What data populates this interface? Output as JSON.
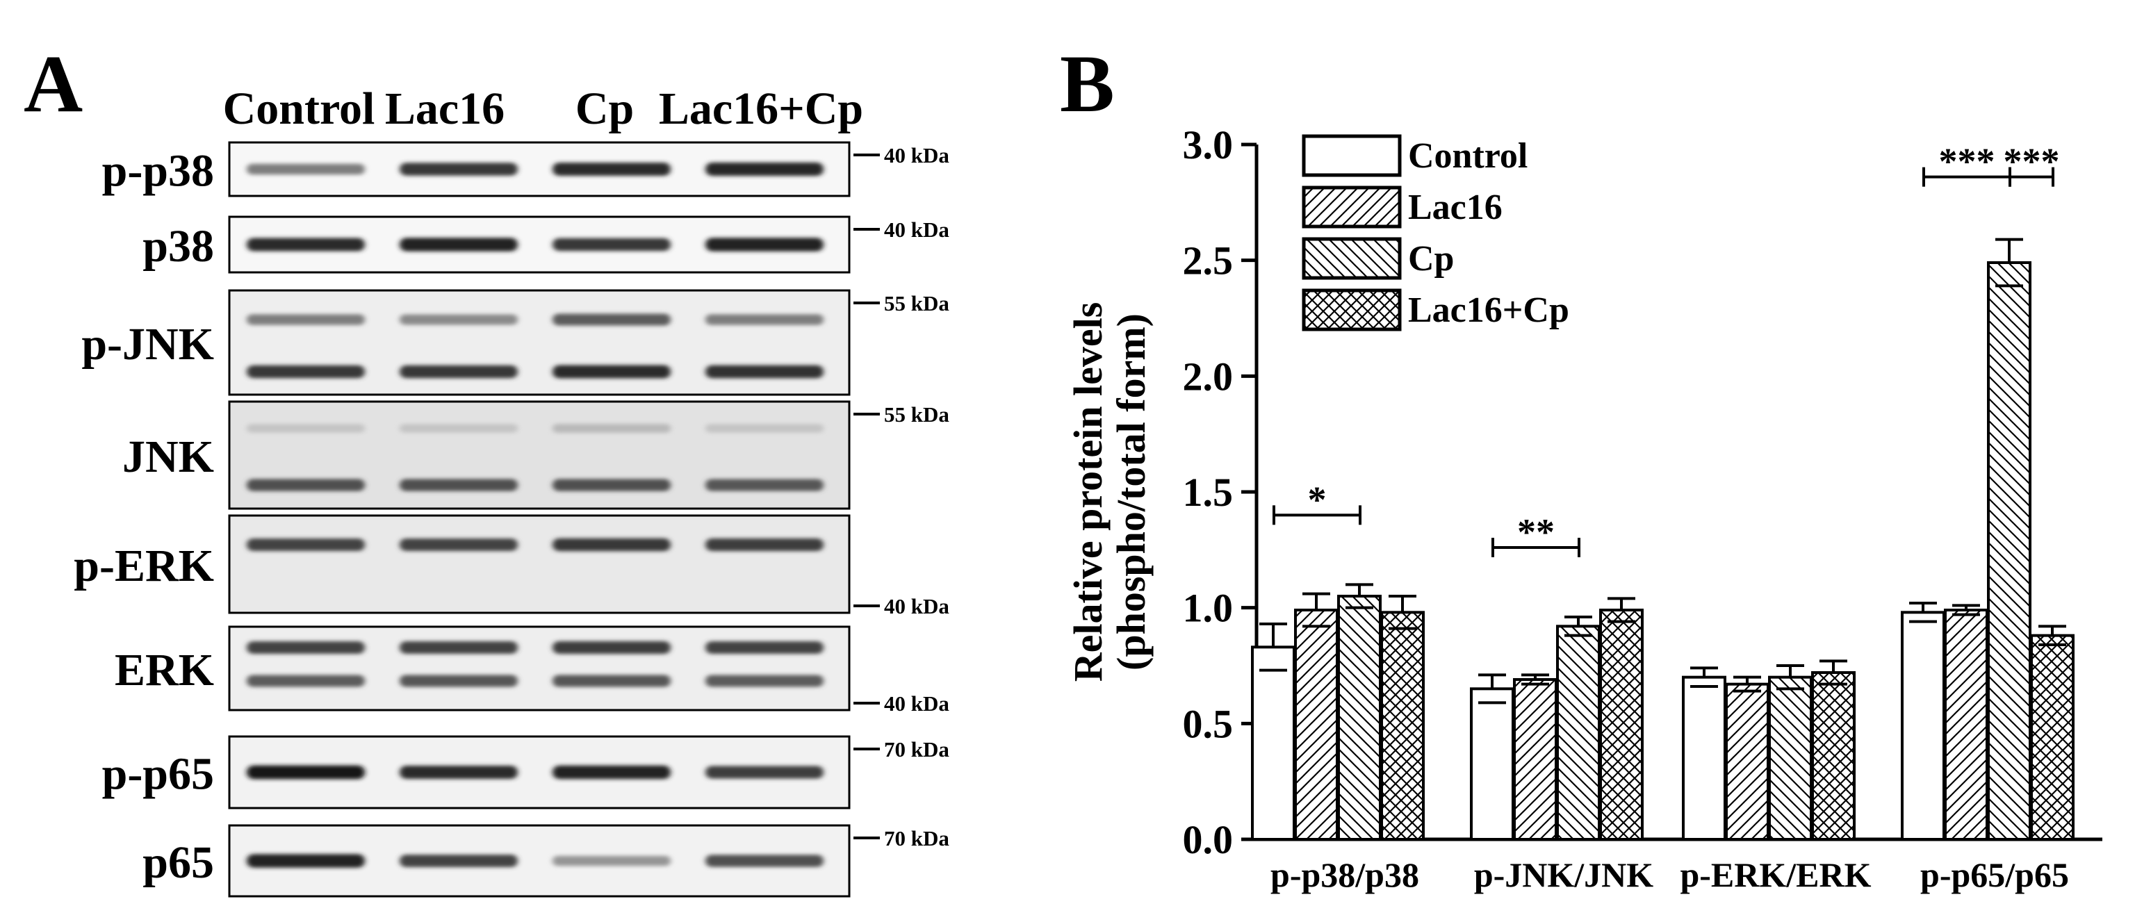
{
  "panelA": {
    "letter": "A",
    "lanes": [
      "Control",
      "Lac16",
      "Cp",
      "Lac16+Cp"
    ],
    "blots": [
      {
        "label": "p-p38",
        "markers": [
          {
            "text": "40 kDa",
            "pos": "top"
          }
        ],
        "bands": [
          [
            0.55,
            0.85,
            0.9,
            0.92
          ]
        ],
        "bg": "#f7f7f7"
      },
      {
        "label": "p38",
        "markers": [
          {
            "text": "40 kDa",
            "pos": "top"
          }
        ],
        "bands": [
          [
            0.9,
            0.95,
            0.85,
            0.95
          ]
        ],
        "bg": "#f7f7f7"
      },
      {
        "label": "p-JNK",
        "markers": [
          {
            "text": "55 kDa",
            "pos": "top"
          }
        ],
        "bands": [
          [
            0.55,
            0.5,
            0.7,
            0.55
          ],
          [
            0.85,
            0.85,
            0.9,
            0.88
          ]
        ],
        "bg": "#eeeeee"
      },
      {
        "label": "JNK",
        "markers": [
          {
            "text": "55 kDa",
            "pos": "top"
          }
        ],
        "bands": [
          [
            0.25,
            0.25,
            0.3,
            0.25
          ],
          [
            0.75,
            0.75,
            0.75,
            0.72
          ]
        ],
        "bg": "#e2e2e2"
      },
      {
        "label": "p-ERK",
        "markers": [
          {
            "text": "40 kDa",
            "pos": "bottom"
          }
        ],
        "bands": [
          [
            0.8,
            0.8,
            0.85,
            0.82
          ]
        ],
        "bg": "#e9e9e9"
      },
      {
        "label": "ERK",
        "markers": [
          {
            "text": "40 kDa",
            "pos": "bottom"
          }
        ],
        "bands": [
          [
            0.8,
            0.8,
            0.82,
            0.8
          ],
          [
            0.7,
            0.72,
            0.72,
            0.7
          ]
        ],
        "bg": "#eeeeee"
      },
      {
        "label": "p-p65",
        "markers": [
          {
            "text": "70 kDa",
            "pos": "top"
          }
        ],
        "bands": [
          [
            0.98,
            0.9,
            0.95,
            0.82
          ]
        ],
        "bg": "#f2f2f2"
      },
      {
        "label": "p65",
        "markers": [
          {
            "text": "70 kDa",
            "pos": "top"
          }
        ],
        "bands": [
          [
            0.95,
            0.8,
            0.45,
            0.75
          ]
        ],
        "bg": "#f2f2f2"
      }
    ]
  },
  "panelB": {
    "letter": "B",
    "chart_data": {
      "type": "bar",
      "ylabel": "Relative protein levels (phospho/total form)",
      "ylabel_lines": [
        "Relative protein levels",
        "(phospho/total form)"
      ],
      "ylim": [
        0,
        3.0
      ],
      "yticks": [
        "0.0",
        "0.5",
        "1.0",
        "1.5",
        "2.0",
        "2.5",
        "3.0"
      ],
      "categories": [
        "p-p38/p38",
        "p-JNK/JNK",
        "p-ERK/ERK",
        "p-p65/p65"
      ],
      "series": [
        {
          "name": "Control",
          "pattern": "none",
          "values": [
            0.83,
            0.65,
            0.7,
            0.98
          ],
          "errors": [
            0.1,
            0.06,
            0.04,
            0.04
          ]
        },
        {
          "name": "Lac16",
          "pattern": "hatch-right",
          "values": [
            0.99,
            0.69,
            0.67,
            0.99
          ],
          "errors": [
            0.07,
            0.02,
            0.03,
            0.02
          ]
        },
        {
          "name": "Cp",
          "pattern": "hatch-left",
          "values": [
            1.05,
            0.92,
            0.7,
            2.49
          ],
          "errors": [
            0.05,
            0.04,
            0.05,
            0.1
          ]
        },
        {
          "name": "Lac16+Cp",
          "pattern": "crosshatch",
          "values": [
            0.98,
            0.99,
            0.72,
            0.88
          ],
          "errors": [
            0.07,
            0.05,
            0.05,
            0.04
          ]
        }
      ],
      "significance": [
        {
          "category": 0,
          "from": 0,
          "to": 2,
          "label": "*"
        },
        {
          "category": 1,
          "from": 0,
          "to": 2,
          "label": "**"
        },
        {
          "category": 3,
          "from": 0,
          "to": 2,
          "label": "***"
        },
        {
          "category": 3,
          "from": 2,
          "to": 3,
          "label": "***"
        }
      ],
      "legend_position": "top-left",
      "grid": false
    }
  }
}
